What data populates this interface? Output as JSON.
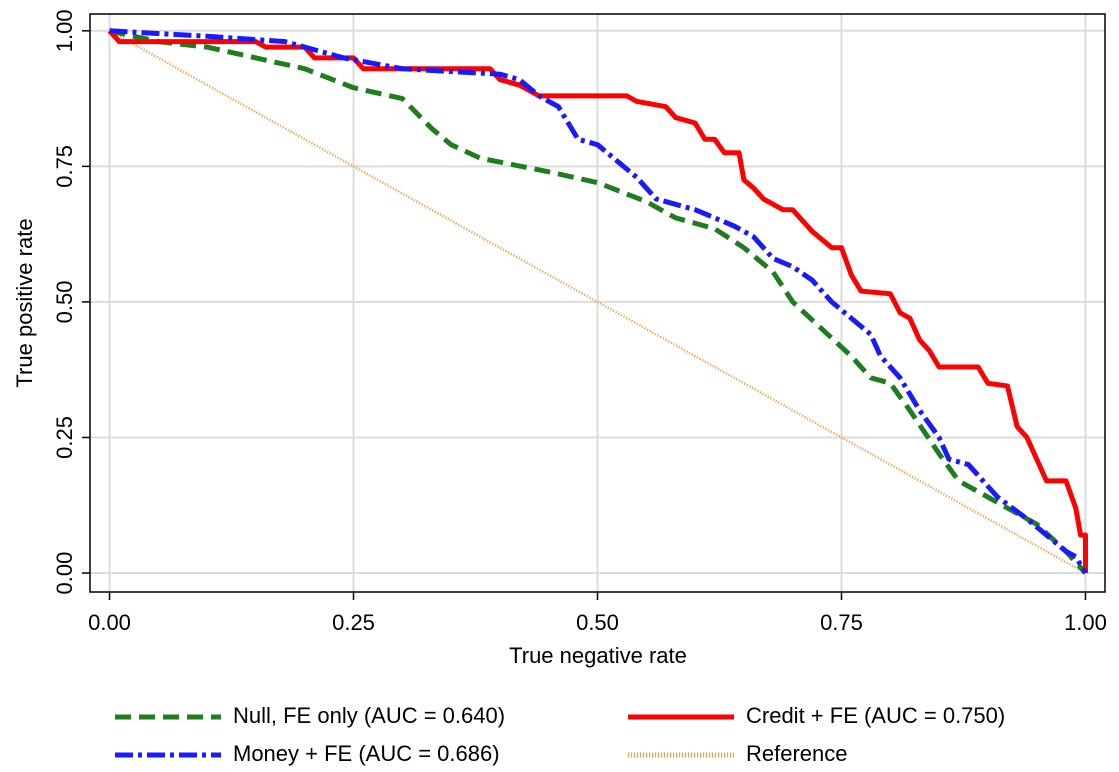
{
  "chart_data": {
    "type": "line",
    "x_label": "True negative rate",
    "y_label": "True positive rate",
    "xlim": [
      -0.02,
      1.02
    ],
    "ylim": [
      -0.035,
      1.031
    ],
    "xticks": [
      {
        "value": 0,
        "label": "0.00"
      },
      {
        "value": 0.25,
        "label": "0.25"
      },
      {
        "value": 0.5,
        "label": "0.50"
      },
      {
        "value": 0.75,
        "label": "0.75"
      },
      {
        "value": 1,
        "label": "1.00"
      }
    ],
    "yticks": [
      {
        "value": 0,
        "label": "0.00"
      },
      {
        "value": 0.25,
        "label": "0.25"
      },
      {
        "value": 0.5,
        "label": "0.50"
      },
      {
        "value": 0.75,
        "label": "0.75"
      },
      {
        "value": 1,
        "label": "1.00"
      }
    ],
    "grid": true,
    "legend": "bottom",
    "series": [
      {
        "name": "Null, FE only (AUC = 0.640)",
        "color": "#1e7d1e",
        "style": "dashed",
        "x": [
          0,
          0.05,
          0.1,
          0.15,
          0.2,
          0.25,
          0.3,
          0.33,
          0.35,
          0.38,
          0.45,
          0.5,
          0.55,
          0.58,
          0.62,
          0.65,
          0.68,
          0.7,
          0.73,
          0.76,
          0.78,
          0.8,
          0.82,
          0.85,
          0.87,
          0.9,
          0.95,
          0.98,
          1
        ],
        "values": [
          1,
          0.98,
          0.97,
          0.95,
          0.93,
          0.895,
          0.875,
          0.82,
          0.79,
          0.765,
          0.74,
          0.72,
          0.685,
          0.655,
          0.635,
          0.6,
          0.555,
          0.5,
          0.45,
          0.4,
          0.36,
          0.35,
          0.3,
          0.22,
          0.17,
          0.14,
          0.09,
          0.04,
          0
        ]
      },
      {
        "name": "Credit + FE (AUC = 0.750)",
        "color": "#ff0000",
        "style": "solid",
        "x": [
          0,
          0.01,
          0.15,
          0.16,
          0.2,
          0.21,
          0.25,
          0.26,
          0.39,
          0.4,
          0.42,
          0.44,
          0.53,
          0.54,
          0.57,
          0.58,
          0.6,
          0.61,
          0.62,
          0.63,
          0.645,
          0.65,
          0.66,
          0.67,
          0.69,
          0.7,
          0.71,
          0.72,
          0.73,
          0.74,
          0.75,
          0.76,
          0.77,
          0.8,
          0.81,
          0.82,
          0.83,
          0.84,
          0.85,
          0.89,
          0.9,
          0.92,
          0.93,
          0.94,
          0.95,
          0.96,
          0.98,
          0.99,
          0.995,
          1,
          1
        ],
        "values": [
          1,
          0.98,
          0.98,
          0.97,
          0.97,
          0.95,
          0.95,
          0.93,
          0.93,
          0.91,
          0.9,
          0.88,
          0.88,
          0.87,
          0.86,
          0.84,
          0.83,
          0.8,
          0.8,
          0.775,
          0.775,
          0.725,
          0.71,
          0.69,
          0.67,
          0.67,
          0.65,
          0.63,
          0.615,
          0.6,
          0.6,
          0.55,
          0.52,
          0.515,
          0.48,
          0.47,
          0.43,
          0.41,
          0.38,
          0.38,
          0.35,
          0.345,
          0.27,
          0.25,
          0.21,
          0.17,
          0.17,
          0.12,
          0.07,
          0.07,
          0
        ]
      },
      {
        "name": "Money + FE (AUC = 0.686)",
        "color": "#1a1aff",
        "style": "dashdot",
        "x": [
          0,
          0.1,
          0.18,
          0.22,
          0.24,
          0.3,
          0.4,
          0.42,
          0.44,
          0.46,
          0.48,
          0.5,
          0.52,
          0.54,
          0.56,
          0.6,
          0.64,
          0.66,
          0.68,
          0.7,
          0.72,
          0.74,
          0.76,
          0.78,
          0.79,
          0.81,
          0.83,
          0.85,
          0.86,
          0.88,
          0.91,
          0.94,
          0.96,
          0.98,
          0.99,
          1
        ],
        "values": [
          1,
          0.99,
          0.98,
          0.96,
          0.95,
          0.93,
          0.92,
          0.91,
          0.88,
          0.86,
          0.8,
          0.79,
          0.76,
          0.73,
          0.69,
          0.67,
          0.64,
          0.62,
          0.58,
          0.565,
          0.54,
          0.5,
          0.47,
          0.44,
          0.4,
          0.36,
          0.3,
          0.25,
          0.21,
          0.2,
          0.14,
          0.1,
          0.07,
          0.04,
          0.03,
          0
        ]
      },
      {
        "name": "Reference",
        "color": "#f0a050",
        "style": "dotted",
        "x": [
          0,
          1
        ],
        "values": [
          1,
          0
        ]
      }
    ]
  }
}
